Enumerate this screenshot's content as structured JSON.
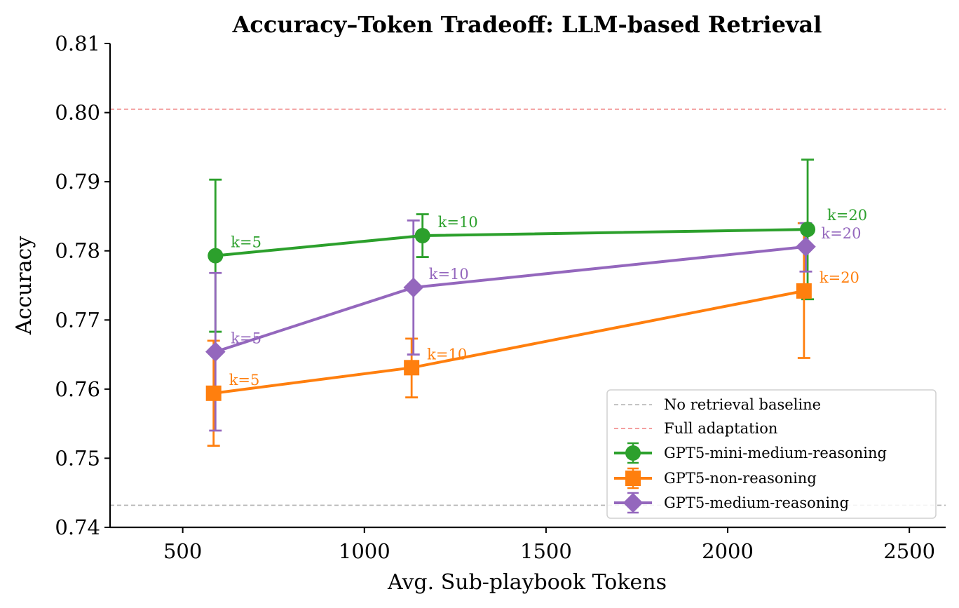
{
  "chart_data": {
    "type": "line",
    "title": "Accuracy–Token Tradeoff: LLM-based Retrieval",
    "xlabel": "Avg. Sub-playbook Tokens",
    "ylabel": "Accuracy",
    "xlim": [
      300,
      2600
    ],
    "ylim": [
      0.74,
      0.81
    ],
    "xticks": [
      500,
      1000,
      1500,
      2000,
      2500
    ],
    "xtick_labels": [
      "500",
      "1000",
      "1500",
      "2000",
      "2500"
    ],
    "yticks": [
      0.74,
      0.75,
      0.76,
      0.77,
      0.78,
      0.79,
      0.8,
      0.81
    ],
    "ytick_labels": [
      "0.74",
      "0.75",
      "0.76",
      "0.77",
      "0.78",
      "0.79",
      "0.80",
      "0.81"
    ],
    "grid": false,
    "legend_position": "bottom-right",
    "reference_lines": [
      {
        "name": "No retrieval baseline",
        "y": 0.7432,
        "color": "#b0b0b0"
      },
      {
        "name": "Full adaptation",
        "y": 0.8005,
        "color": "#f08080"
      }
    ],
    "series": [
      {
        "name": "GPT5-mini-medium-reasoning",
        "color": "#2ca02c",
        "marker": "circle",
        "points": [
          {
            "x": 590,
            "y": 0.7793,
            "err_low": 0.7683,
            "err_high": 0.7903,
            "label": "k=5"
          },
          {
            "x": 1160,
            "y": 0.7822,
            "err_low": 0.7791,
            "err_high": 0.7853,
            "label": "k=10"
          },
          {
            "x": 2220,
            "y": 0.7831,
            "err_low": 0.773,
            "err_high": 0.7932,
            "label": "k=20"
          }
        ]
      },
      {
        "name": "GPT5-non-reasoning",
        "color": "#ff7f0e",
        "marker": "square",
        "points": [
          {
            "x": 585,
            "y": 0.7594,
            "err_low": 0.7518,
            "err_high": 0.767,
            "label": "k=5"
          },
          {
            "x": 1130,
            "y": 0.7631,
            "err_low": 0.7588,
            "err_high": 0.7673,
            "label": "k=10"
          },
          {
            "x": 2210,
            "y": 0.7742,
            "err_low": 0.7645,
            "err_high": 0.784,
            "label": "k=20"
          }
        ]
      },
      {
        "name": "GPT5-medium-reasoning",
        "color": "#9467bd",
        "marker": "diamond",
        "points": [
          {
            "x": 590,
            "y": 0.7654,
            "err_low": 0.754,
            "err_high": 0.7768,
            "label": "k=5"
          },
          {
            "x": 1135,
            "y": 0.7747,
            "err_low": 0.765,
            "err_high": 0.7844,
            "label": "k=10"
          },
          {
            "x": 2215,
            "y": 0.7806,
            "err_low": 0.777,
            "err_high": 0.784,
            "label": "k=20"
          }
        ]
      }
    ]
  }
}
